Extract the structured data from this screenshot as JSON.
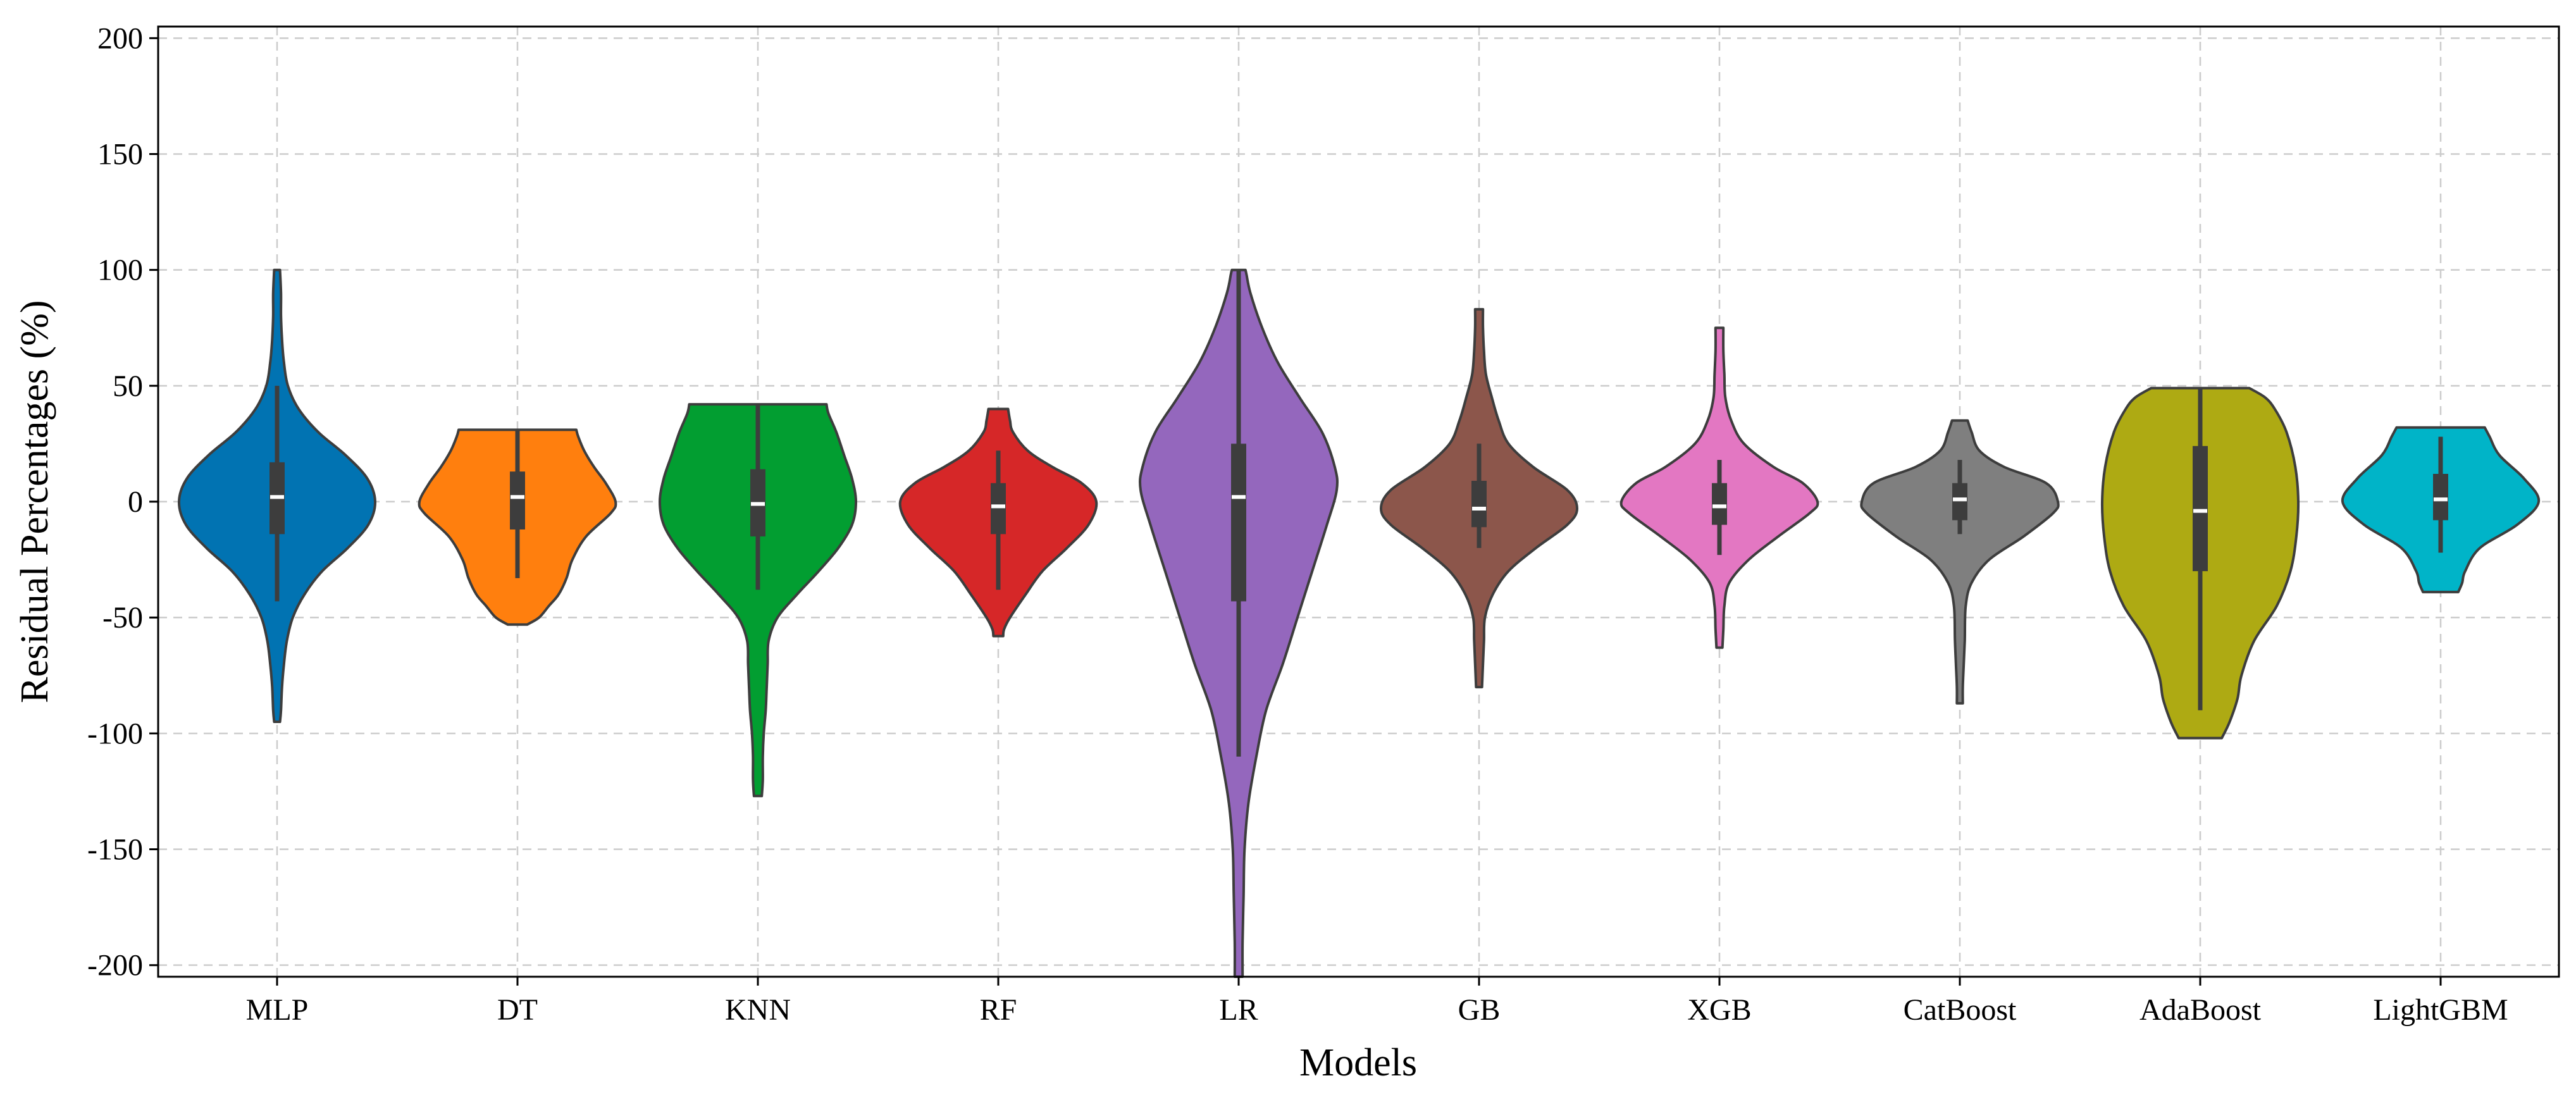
{
  "chart_data": {
    "type": "violin",
    "title": "",
    "xlabel": "Models",
    "ylabel": "Residual Percentages (%)",
    "ylim": [
      -205,
      205
    ],
    "yticks": [
      200,
      150,
      100,
      50,
      0,
      -50,
      -100,
      -150,
      -200
    ],
    "grid": true,
    "categories": [
      "MLP",
      "DT",
      "KNN",
      "RF",
      "LR",
      "GB",
      "XGB",
      "CatBoost",
      "AdaBoost",
      "LightGBM"
    ],
    "series": [
      {
        "name": "MLP",
        "color": "#0173b2",
        "min": -95,
        "max": 100,
        "q1": -14,
        "median": 2,
        "q3": 17,
        "whisker_low": -43,
        "whisker_high": 50,
        "density": [
          [
            -95,
            0.03
          ],
          [
            -90,
            0.04
          ],
          [
            -80,
            0.05
          ],
          [
            -70,
            0.07
          ],
          [
            -60,
            0.1
          ],
          [
            -50,
            0.16
          ],
          [
            -40,
            0.28
          ],
          [
            -30,
            0.46
          ],
          [
            -20,
            0.72
          ],
          [
            -10,
            0.93
          ],
          [
            0,
            1.0
          ],
          [
            10,
            0.92
          ],
          [
            20,
            0.7
          ],
          [
            30,
            0.42
          ],
          [
            40,
            0.22
          ],
          [
            50,
            0.11
          ],
          [
            60,
            0.07
          ],
          [
            70,
            0.05
          ],
          [
            80,
            0.04
          ],
          [
            90,
            0.04
          ],
          [
            100,
            0.03
          ]
        ]
      },
      {
        "name": "DT",
        "color": "#ff7f0e",
        "min": -53,
        "max": 31,
        "q1": -12,
        "median": 2,
        "q3": 13,
        "whisker_low": -33,
        "whisker_high": 31,
        "density": [
          [
            -53,
            0.1
          ],
          [
            -50,
            0.22
          ],
          [
            -45,
            0.32
          ],
          [
            -40,
            0.42
          ],
          [
            -33,
            0.5
          ],
          [
            -25,
            0.56
          ],
          [
            -15,
            0.7
          ],
          [
            -5,
            0.95
          ],
          [
            0,
            1.0
          ],
          [
            8,
            0.9
          ],
          [
            15,
            0.78
          ],
          [
            22,
            0.68
          ],
          [
            28,
            0.62
          ],
          [
            31,
            0.6
          ]
        ]
      },
      {
        "name": "KNN",
        "color": "#029e31",
        "min": -127,
        "max": 42,
        "q1": -15,
        "median": -1,
        "q3": 14,
        "whisker_low": -38,
        "whisker_high": 42,
        "density": [
          [
            -127,
            0.04
          ],
          [
            -120,
            0.05
          ],
          [
            -110,
            0.05
          ],
          [
            -100,
            0.06
          ],
          [
            -90,
            0.08
          ],
          [
            -80,
            0.09
          ],
          [
            -70,
            0.1
          ],
          [
            -60,
            0.11
          ],
          [
            -50,
            0.2
          ],
          [
            -40,
            0.4
          ],
          [
            -30,
            0.62
          ],
          [
            -20,
            0.82
          ],
          [
            -10,
            0.96
          ],
          [
            0,
            1.0
          ],
          [
            10,
            0.96
          ],
          [
            20,
            0.88
          ],
          [
            30,
            0.8
          ],
          [
            38,
            0.72
          ],
          [
            42,
            0.7
          ]
        ]
      },
      {
        "name": "RF",
        "color": "#d62728",
        "min": -58,
        "max": 40,
        "q1": -14,
        "median": -2,
        "q3": 8,
        "whisker_low": -38,
        "whisker_high": 22,
        "density": [
          [
            -58,
            0.05
          ],
          [
            -55,
            0.06
          ],
          [
            -50,
            0.12
          ],
          [
            -40,
            0.28
          ],
          [
            -30,
            0.45
          ],
          [
            -20,
            0.7
          ],
          [
            -10,
            0.92
          ],
          [
            0,
            1.0
          ],
          [
            8,
            0.85
          ],
          [
            15,
            0.55
          ],
          [
            22,
            0.3
          ],
          [
            30,
            0.15
          ],
          [
            35,
            0.12
          ],
          [
            40,
            0.1
          ]
        ]
      },
      {
        "name": "LR",
        "color": "#9467bd",
        "min": -205,
        "max": 100,
        "q1": -43,
        "median": 2,
        "q3": 25,
        "whisker_low": -110,
        "whisker_high": 100,
        "density": [
          [
            -205,
            0.04
          ],
          [
            -190,
            0.04
          ],
          [
            -170,
            0.05
          ],
          [
            -150,
            0.06
          ],
          [
            -130,
            0.1
          ],
          [
            -110,
            0.18
          ],
          [
            -90,
            0.28
          ],
          [
            -70,
            0.45
          ],
          [
            -50,
            0.6
          ],
          [
            -30,
            0.75
          ],
          [
            -10,
            0.9
          ],
          [
            5,
            1.0
          ],
          [
            15,
            0.98
          ],
          [
            30,
            0.85
          ],
          [
            45,
            0.62
          ],
          [
            60,
            0.4
          ],
          [
            75,
            0.24
          ],
          [
            90,
            0.12
          ],
          [
            98,
            0.08
          ],
          [
            100,
            0.07
          ]
        ]
      },
      {
        "name": "GB",
        "color": "#8c564b",
        "min": -80,
        "max": 83,
        "q1": -11,
        "median": -3,
        "q3": 9,
        "whisker_low": -20,
        "whisker_high": 25,
        "density": [
          [
            -80,
            0.03
          ],
          [
            -70,
            0.04
          ],
          [
            -60,
            0.05
          ],
          [
            -50,
            0.06
          ],
          [
            -40,
            0.14
          ],
          [
            -30,
            0.3
          ],
          [
            -20,
            0.58
          ],
          [
            -10,
            0.9
          ],
          [
            -3,
            1.0
          ],
          [
            5,
            0.9
          ],
          [
            15,
            0.55
          ],
          [
            25,
            0.3
          ],
          [
            35,
            0.2
          ],
          [
            45,
            0.13
          ],
          [
            55,
            0.07
          ],
          [
            65,
            0.05
          ],
          [
            75,
            0.04
          ],
          [
            83,
            0.04
          ]
        ]
      },
      {
        "name": "XGB",
        "color": "#e377c2",
        "min": -63,
        "max": 75,
        "q1": -10,
        "median": -2,
        "q3": 8,
        "whisker_low": -23,
        "whisker_high": 18,
        "density": [
          [
            -63,
            0.03
          ],
          [
            -55,
            0.04
          ],
          [
            -45,
            0.05
          ],
          [
            -35,
            0.1
          ],
          [
            -25,
            0.3
          ],
          [
            -15,
            0.6
          ],
          [
            -5,
            0.92
          ],
          [
            0,
            1.0
          ],
          [
            8,
            0.85
          ],
          [
            15,
            0.55
          ],
          [
            25,
            0.25
          ],
          [
            35,
            0.12
          ],
          [
            45,
            0.06
          ],
          [
            55,
            0.05
          ],
          [
            65,
            0.04
          ],
          [
            75,
            0.04
          ]
        ]
      },
      {
        "name": "CatBoost",
        "color": "#7f7f7f",
        "min": -87,
        "max": 35,
        "q1": -8,
        "median": 1,
        "q3": 8,
        "whisker_low": -14,
        "whisker_high": 18,
        "density": [
          [
            -87,
            0.03
          ],
          [
            -80,
            0.03
          ],
          [
            -70,
            0.04
          ],
          [
            -60,
            0.05
          ],
          [
            -45,
            0.06
          ],
          [
            -35,
            0.12
          ],
          [
            -25,
            0.3
          ],
          [
            -15,
            0.65
          ],
          [
            -5,
            0.95
          ],
          [
            0,
            1.0
          ],
          [
            8,
            0.88
          ],
          [
            15,
            0.45
          ],
          [
            22,
            0.2
          ],
          [
            30,
            0.12
          ],
          [
            35,
            0.08
          ]
        ]
      },
      {
        "name": "AdaBoost",
        "color": "#aeaa13",
        "min": -102,
        "max": 49,
        "q1": -30,
        "median": -4,
        "q3": 24,
        "whisker_low": -90,
        "whisker_high": 49,
        "density": [
          [
            -102,
            0.22
          ],
          [
            -95,
            0.3
          ],
          [
            -85,
            0.38
          ],
          [
            -75,
            0.42
          ],
          [
            -60,
            0.55
          ],
          [
            -45,
            0.78
          ],
          [
            -30,
            0.92
          ],
          [
            -15,
            0.98
          ],
          [
            0,
            1.0
          ],
          [
            15,
            0.97
          ],
          [
            30,
            0.88
          ],
          [
            40,
            0.76
          ],
          [
            45,
            0.66
          ],
          [
            49,
            0.5
          ]
        ]
      },
      {
        "name": "LightGBM",
        "color": "#00b4c8",
        "min": -39,
        "max": 32,
        "q1": -8,
        "median": 1,
        "q3": 12,
        "whisker_low": -22,
        "whisker_high": 28,
        "density": [
          [
            -39,
            0.18
          ],
          [
            -35,
            0.22
          ],
          [
            -30,
            0.25
          ],
          [
            -20,
            0.4
          ],
          [
            -10,
            0.78
          ],
          [
            0,
            1.0
          ],
          [
            10,
            0.85
          ],
          [
            20,
            0.6
          ],
          [
            28,
            0.5
          ],
          [
            32,
            0.45
          ]
        ]
      }
    ]
  }
}
